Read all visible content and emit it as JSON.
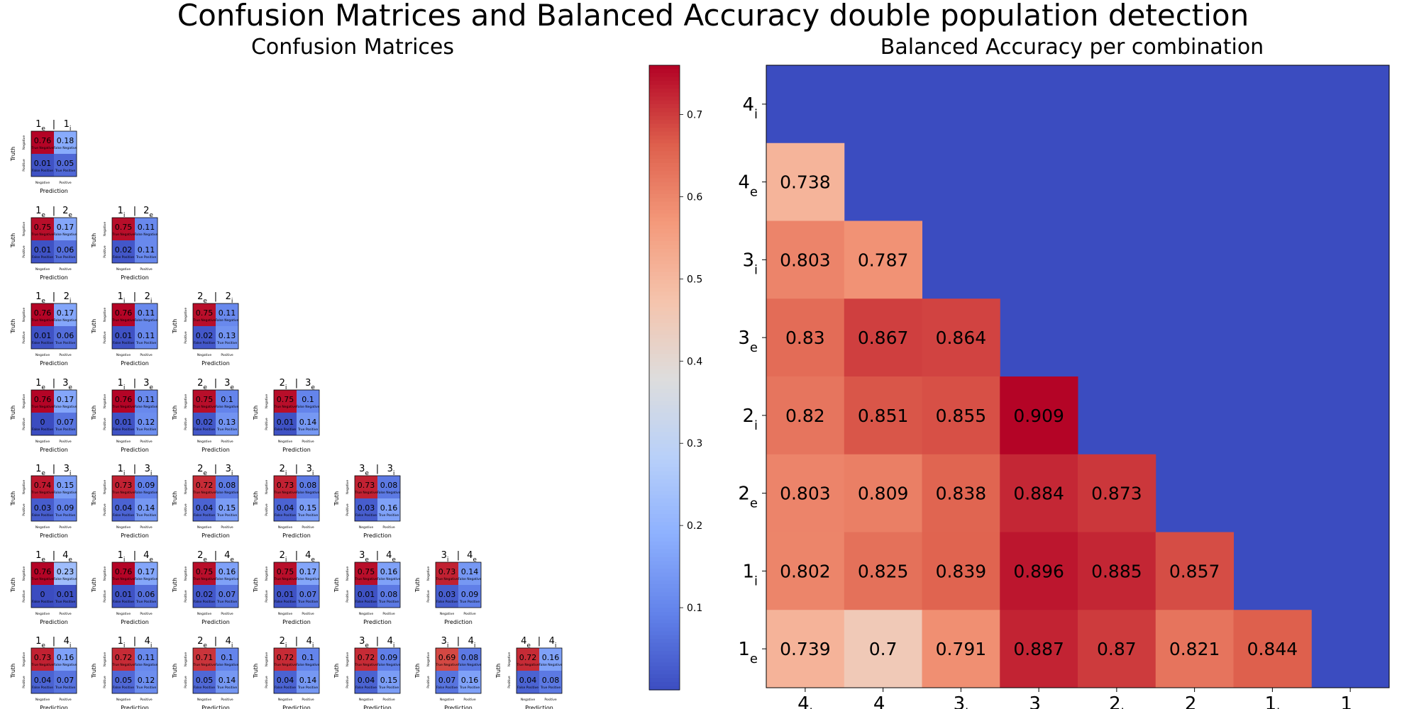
{
  "title": "Confusion Matrices and Balanced Accuracy double population detection",
  "chart_data": [
    {
      "type": "heatmap",
      "title": "Confusion Matrices",
      "xlabel": "Prediction",
      "ylabel": "Truth",
      "tick_labels": {
        "x": [
          "Negative",
          "Positive"
        ],
        "y": [
          "Negative",
          "Positive"
        ]
      },
      "cell_labels": [
        "True Negative",
        "False Negative",
        "False Positive",
        "True Positive"
      ],
      "colormap": "coolwarm",
      "colorbar": {
        "ticks": [
          0.1,
          0.2,
          0.3,
          0.4,
          0.5,
          0.6,
          0.7
        ],
        "range": [
          0.0,
          0.76
        ]
      },
      "matrices": [
        {
          "a": "1",
          "asub": "e",
          "b": "1",
          "bsub": "i",
          "values": [
            0.76,
            0.18,
            0.01,
            0.05
          ]
        },
        {
          "a": "1",
          "asub": "e",
          "b": "2",
          "bsub": "e",
          "values": [
            0.75,
            0.17,
            0.01,
            0.06
          ]
        },
        {
          "a": "1",
          "asub": "i",
          "b": "2",
          "bsub": "e",
          "values": [
            0.75,
            0.11,
            0.02,
            0.11
          ]
        },
        {
          "a": "1",
          "asub": "e",
          "b": "2",
          "bsub": "i",
          "values": [
            0.76,
            0.17,
            0.01,
            0.06
          ]
        },
        {
          "a": "1",
          "asub": "i",
          "b": "2",
          "bsub": "i",
          "values": [
            0.76,
            0.11,
            0.01,
            0.11
          ]
        },
        {
          "a": "2",
          "asub": "e",
          "b": "2",
          "bsub": "i",
          "values": [
            0.75,
            0.11,
            0.02,
            0.13
          ]
        },
        {
          "a": "1",
          "asub": "e",
          "b": "3",
          "bsub": "e",
          "values": [
            0.76,
            0.17,
            0.0,
            0.07
          ]
        },
        {
          "a": "1",
          "asub": "i",
          "b": "3",
          "bsub": "e",
          "values": [
            0.76,
            0.11,
            0.01,
            0.12
          ]
        },
        {
          "a": "2",
          "asub": "e",
          "b": "3",
          "bsub": "e",
          "values": [
            0.75,
            0.1,
            0.02,
            0.13
          ]
        },
        {
          "a": "2",
          "asub": "i",
          "b": "3",
          "bsub": "e",
          "values": [
            0.75,
            0.1,
            0.01,
            0.14
          ]
        },
        {
          "a": "1",
          "asub": "e",
          "b": "3",
          "bsub": "i",
          "values": [
            0.74,
            0.15,
            0.03,
            0.09
          ]
        },
        {
          "a": "1",
          "asub": "i",
          "b": "3",
          "bsub": "i",
          "values": [
            0.73,
            0.09,
            0.04,
            0.14
          ]
        },
        {
          "a": "2",
          "asub": "e",
          "b": "3",
          "bsub": "i",
          "values": [
            0.72,
            0.08,
            0.04,
            0.15
          ]
        },
        {
          "a": "2",
          "asub": "i",
          "b": "3",
          "bsub": "i",
          "values": [
            0.73,
            0.08,
            0.04,
            0.15
          ]
        },
        {
          "a": "3",
          "asub": "e",
          "b": "3",
          "bsub": "i",
          "values": [
            0.73,
            0.08,
            0.03,
            0.16
          ]
        },
        {
          "a": "1",
          "asub": "e",
          "b": "4",
          "bsub": "e",
          "values": [
            0.76,
            0.23,
            0.0,
            0.01
          ]
        },
        {
          "a": "1",
          "asub": "i",
          "b": "4",
          "bsub": "e",
          "values": [
            0.76,
            0.17,
            0.01,
            0.06
          ]
        },
        {
          "a": "2",
          "asub": "e",
          "b": "4",
          "bsub": "e",
          "values": [
            0.75,
            0.16,
            0.02,
            0.07
          ]
        },
        {
          "a": "2",
          "asub": "i",
          "b": "4",
          "bsub": "e",
          "values": [
            0.75,
            0.17,
            0.01,
            0.07
          ]
        },
        {
          "a": "3",
          "asub": "e",
          "b": "4",
          "bsub": "e",
          "values": [
            0.75,
            0.16,
            0.01,
            0.08
          ]
        },
        {
          "a": "3",
          "asub": "i",
          "b": "4",
          "bsub": "e",
          "values": [
            0.73,
            0.14,
            0.03,
            0.09
          ]
        },
        {
          "a": "1",
          "asub": "e",
          "b": "4",
          "bsub": "i",
          "values": [
            0.73,
            0.16,
            0.04,
            0.07
          ]
        },
        {
          "a": "1",
          "asub": "i",
          "b": "4",
          "bsub": "i",
          "values": [
            0.72,
            0.11,
            0.05,
            0.12
          ]
        },
        {
          "a": "2",
          "asub": "e",
          "b": "4",
          "bsub": "i",
          "values": [
            0.71,
            0.1,
            0.05,
            0.14
          ]
        },
        {
          "a": "2",
          "asub": "i",
          "b": "4",
          "bsub": "i",
          "values": [
            0.72,
            0.1,
            0.04,
            0.14
          ]
        },
        {
          "a": "3",
          "asub": "e",
          "b": "4",
          "bsub": "i",
          "values": [
            0.72,
            0.09,
            0.04,
            0.15
          ]
        },
        {
          "a": "3",
          "asub": "i",
          "b": "4",
          "bsub": "i",
          "values": [
            0.69,
            0.08,
            0.07,
            0.16
          ]
        },
        {
          "a": "4",
          "asub": "e",
          "b": "4",
          "bsub": "i",
          "values": [
            0.72,
            0.16,
            0.04,
            0.08
          ]
        }
      ]
    },
    {
      "type": "heatmap",
      "title": "Balanced Accuracy per combination",
      "colormap": "coolwarm",
      "x_labels": [
        {
          "n": "4",
          "s": "i"
        },
        {
          "n": "4",
          "s": "e"
        },
        {
          "n": "3",
          "s": "i"
        },
        {
          "n": "3",
          "s": "e"
        },
        {
          "n": "2",
          "s": "i"
        },
        {
          "n": "2",
          "s": "e"
        },
        {
          "n": "1",
          "s": "i"
        },
        {
          "n": "1",
          "s": "e"
        }
      ],
      "y_labels": [
        {
          "n": "4",
          "s": "i"
        },
        {
          "n": "4",
          "s": "e"
        },
        {
          "n": "3",
          "s": "i"
        },
        {
          "n": "3",
          "s": "e"
        },
        {
          "n": "2",
          "s": "i"
        },
        {
          "n": "2",
          "s": "e"
        },
        {
          "n": "1",
          "s": "i"
        },
        {
          "n": "1",
          "s": "e"
        }
      ],
      "values": [
        [
          0.738
        ],
        [
          0.803,
          0.787
        ],
        [
          0.83,
          0.867,
          0.864
        ],
        [
          0.82,
          0.851,
          0.855,
          0.909
        ],
        [
          0.803,
          0.809,
          0.838,
          0.884,
          0.873
        ],
        [
          0.802,
          0.825,
          0.839,
          0.896,
          0.885,
          0.857
        ],
        [
          0.739,
          0.7,
          0.791,
          0.887,
          0.87,
          0.821,
          0.844
        ]
      ],
      "value_range": [
        0.7,
        0.909
      ],
      "empty_cell_color": "#3b4cc0"
    }
  ]
}
